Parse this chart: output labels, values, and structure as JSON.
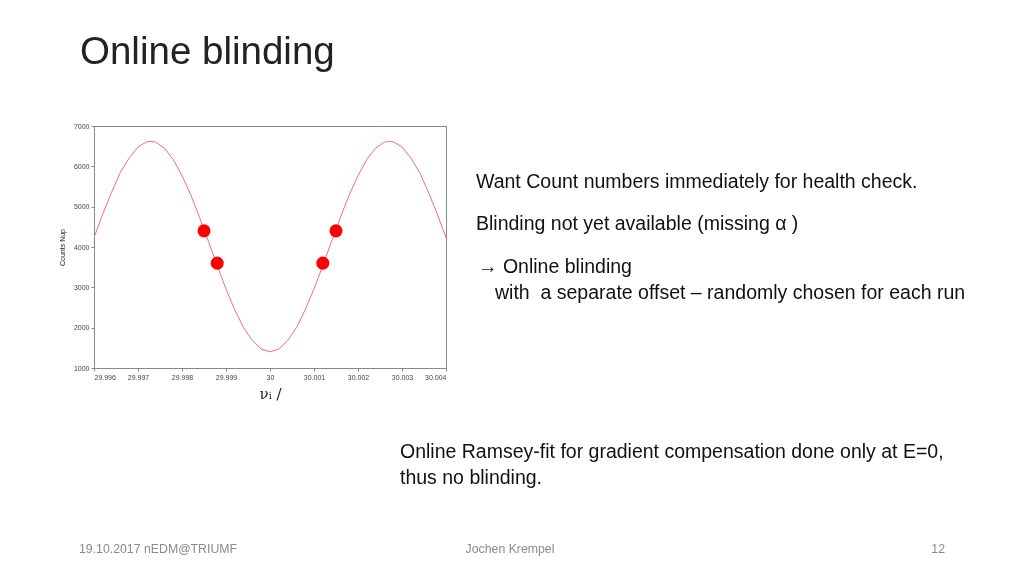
{
  "chart_data": {
    "type": "line",
    "title": "Online blinding",
    "xlabel": "νᵢ /",
    "ylabel": "Counts Nup",
    "xlim": [
      29.996,
      30.004
    ],
    "xticks": [
      29.996,
      29.997,
      29.998,
      29.999,
      30,
      30.001,
      30.002,
      30.003,
      30.004
    ],
    "ylim": [
      1000,
      7000
    ],
    "yticks": [
      1000,
      2000,
      3000,
      4000,
      5000,
      6000,
      7000
    ],
    "series": [
      {
        "type": "line",
        "color": "#f07070",
        "x": [
          29.996,
          29.9962,
          29.9964,
          29.9966,
          29.9968,
          29.997,
          29.9972,
          29.9973,
          29.9974,
          29.9976,
          29.9978,
          29.998,
          29.9982,
          29.9984,
          29.9986,
          29.9988,
          29.999,
          29.9992,
          29.9994,
          29.9996,
          29.9998,
          30,
          30.0002,
          30.0004,
          30.0006,
          30.0008,
          30.001,
          30.0012,
          30.0014,
          30.0016,
          30.0018,
          30.002,
          30.0022,
          30.0024,
          30.0026,
          30.0027,
          30.0028,
          30.003,
          30.0032,
          30.0034,
          30.0036,
          30.0038,
          30.004
        ],
        "values": [
          4230,
          4820,
          5360,
          5850,
          6210,
          6480,
          6610,
          6620,
          6600,
          6450,
          6170,
          5770,
          5290,
          4730,
          4140,
          3540,
          2960,
          2440,
          2000,
          1680,
          1470,
          1400,
          1470,
          1680,
          2000,
          2440,
          2960,
          3540,
          4140,
          4730,
          5290,
          5770,
          6170,
          6450,
          6600,
          6620,
          6610,
          6480,
          6210,
          5850,
          5360,
          4820,
          4230
        ]
      },
      {
        "type": "scatter",
        "color": "#ff0000",
        "marker": "circle",
        "x": [
          29.9985,
          29.9988,
          30.0012,
          30.0015
        ],
        "values": [
          4400,
          3600,
          3600,
          4400
        ]
      }
    ],
    "annotations": [
      "Want Count numbers immediately for health check.",
      "Blinding not yet available (missing α )",
      "→ Online blinding",
      "with  a separate offset – randomly chosen for each run",
      "Online Ramsey-fit for gradient compensation done only at E=0,",
      "thus no blinding.",
      "19.10.2017 nEDM@TRIUMF",
      "Jochen Krempel",
      "12"
    ]
  }
}
